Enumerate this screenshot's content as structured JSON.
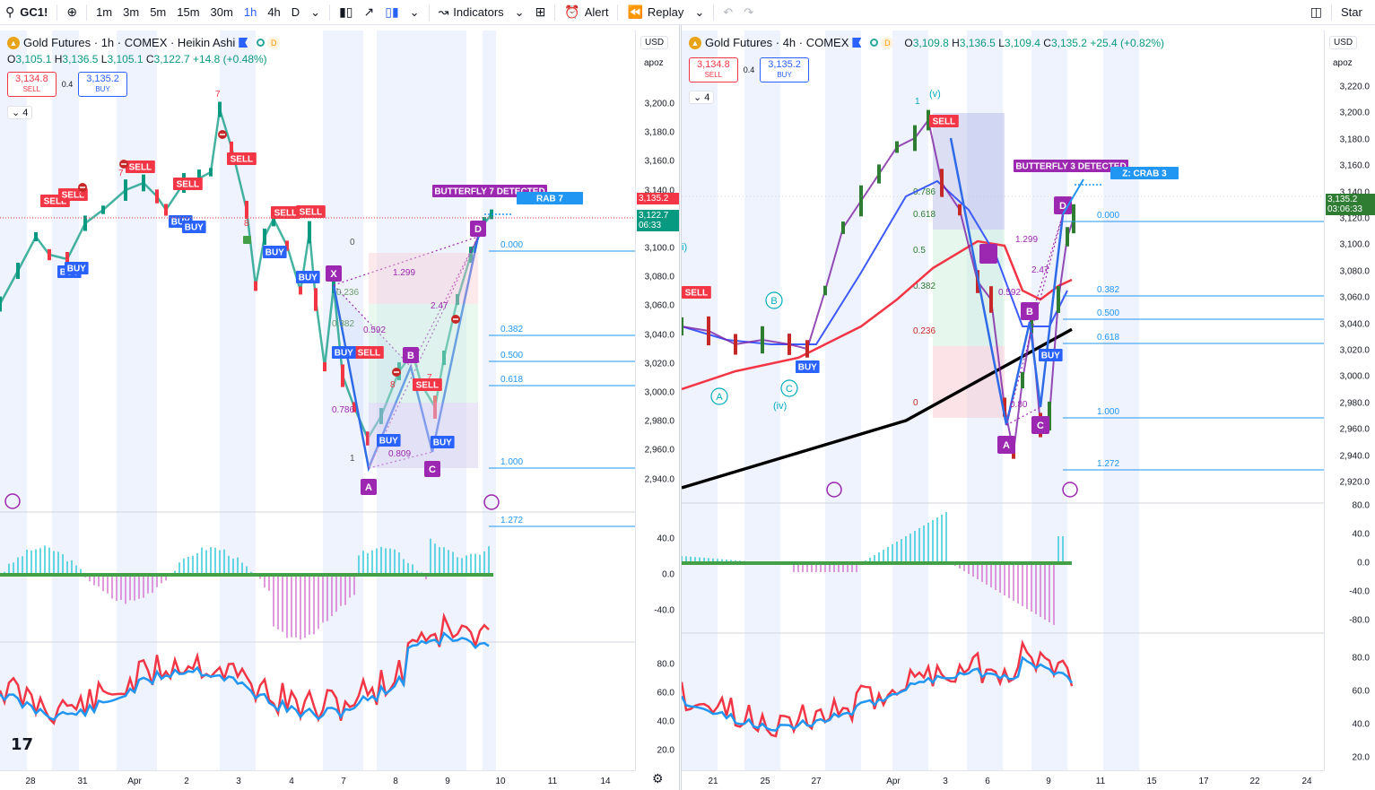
{
  "toolbar": {
    "symbol": "GC1!",
    "add_symbol_icon": "plus-circle-icon",
    "intervals": [
      "1m",
      "3m",
      "5m",
      "15m",
      "30m",
      "1h",
      "4h",
      "D"
    ],
    "active_interval": "1h",
    "indicators_label": "Indicators",
    "alert_label": "Alert",
    "replay_label": "Replay",
    "star_label": "Star"
  },
  "left_chart": {
    "title": "Gold Futures · 1h · COMEX · Heikin Ashi",
    "ohlc": {
      "o_label": "O",
      "o": "3,105.1",
      "h_label": "H",
      "h": "3,136.5",
      "l_label": "L",
      "l": "3,105.1",
      "c_label": "C",
      "c": "3,122.7",
      "change": "+14.8 (+0.48%)"
    },
    "sell_price": "3,134.8",
    "sell_label": "SELL",
    "buy_price": "3,135.2",
    "buy_label": "BUY",
    "spread": "0.4",
    "collapse_count": "4",
    "currency": "USD",
    "scale_mode": "apoz",
    "price_ticks": [
      "3,200.0",
      "3,180.0",
      "3,160.0",
      "3,140.0",
      "3,120.0",
      "3,100.0",
      "3,080.0",
      "3,060.0",
      "3,040.0",
      "3,020.0",
      "3,000.0",
      "2,980.0",
      "2,960.0",
      "2,940.0"
    ],
    "last_price_tag": "3,135.2",
    "current_price_tag": "3,122.7",
    "current_time_tag": "06:33",
    "osc_ticks": [
      "40.0",
      "0.0",
      "-40.0"
    ],
    "rsi_ticks": [
      "80.0",
      "60.0",
      "40.0",
      "20.0"
    ],
    "x_ticks": [
      "28",
      "31",
      "Apr",
      "2",
      "3",
      "4",
      "7",
      "8",
      "9",
      "10",
      "11",
      "14"
    ],
    "pattern_label": "BUTTERFLY 7 DETECTED",
    "crab_label": "RAB 7",
    "fib_levels": [
      "0.000",
      "0.382",
      "0.500",
      "0.618",
      "1.000",
      "1.272"
    ],
    "fib_zero": "0",
    "fib_one": "1",
    "pivot_labels": [
      "X",
      "A",
      "B",
      "C",
      "D"
    ],
    "ratio_labels": [
      "1.299",
      "2.47",
      "0.592",
      "0.786",
      "0.809",
      "0.382",
      "0.236"
    ],
    "sell_signals": [
      "SELL",
      "SELL",
      "SELL",
      "SELL",
      "SELL",
      "SELL",
      "SELL",
      "SELL",
      "SELL"
    ],
    "buy_signals": [
      "BUY",
      "BUY",
      "BUY",
      "BUY",
      "BUY",
      "BUY",
      "BUY"
    ],
    "number_marks": [
      "7",
      "7",
      "8",
      "8",
      "8",
      "7"
    ]
  },
  "right_chart": {
    "title": "Gold Futures · 4h · COMEX",
    "ohlc": {
      "o_label": "O",
      "o": "3,109.8",
      "h_label": "H",
      "h": "3,136.5",
      "l_label": "L",
      "l": "3,109.4",
      "c_label": "C",
      "c": "3,135.2",
      "change": "+25.4 (+0.82%)"
    },
    "sell_price": "3,134.8",
    "sell_label": "SELL",
    "buy_price": "3,135.2",
    "buy_label": "BUY",
    "spread": "0.4",
    "collapse_count": "4",
    "currency": "USD",
    "scale_mode": "apoz",
    "price_ticks": [
      "3,220.0",
      "3,200.0",
      "3,180.0",
      "3,160.0",
      "3,140.0",
      "3,120.0",
      "3,100.0",
      "3,080.0",
      "3,060.0",
      "3,040.0",
      "3,020.0",
      "3,000.0",
      "2,980.0",
      "2,960.0",
      "2,940.0",
      "2,920.0"
    ],
    "current_price_tag": "3,135.2",
    "current_time_tag": "03:06:33",
    "osc_ticks": [
      "80.0",
      "40.0",
      "0.0",
      "-40.0",
      "-80.0"
    ],
    "rsi_ticks": [
      "80.0",
      "60.0",
      "40.0",
      "20.0"
    ],
    "x_ticks": [
      "21",
      "25",
      "27",
      "Apr",
      "3",
      "6",
      "9",
      "11",
      "15",
      "17",
      "22",
      "24"
    ],
    "pattern_label": "BUTTERFLY 3 DETECTED",
    "crab_label": "Z: CRAB 3",
    "fib_levels": [
      "0.000",
      "0.382",
      "0.500",
      "0.618",
      "1.000",
      "1.272"
    ],
    "box_fibs": [
      "0.786",
      "0.618",
      "0.5",
      "0.382",
      "0.236",
      "0"
    ],
    "wave_labels": [
      "(v)",
      "1",
      "(iv)",
      "i)"
    ],
    "circle_labels": [
      "A",
      "B",
      "C"
    ],
    "pivot_labels": [
      "A",
      "B",
      "C",
      "D"
    ],
    "ratio_labels": [
      "1.299",
      "2.47",
      "0.592",
      "0.80"
    ],
    "sell_signals": [
      "SELL",
      "SELL"
    ],
    "buy_signals": [
      "BUY",
      "BUY"
    ]
  },
  "colors": {
    "bull": "#089981",
    "bear": "#f23645",
    "purple": "#9c27b0",
    "blue": "#2962ff",
    "fib_line": "#2196f3",
    "rsi_red": "#f23645",
    "rsi_blue": "#2196f3",
    "session_band": "#e8eefc"
  }
}
